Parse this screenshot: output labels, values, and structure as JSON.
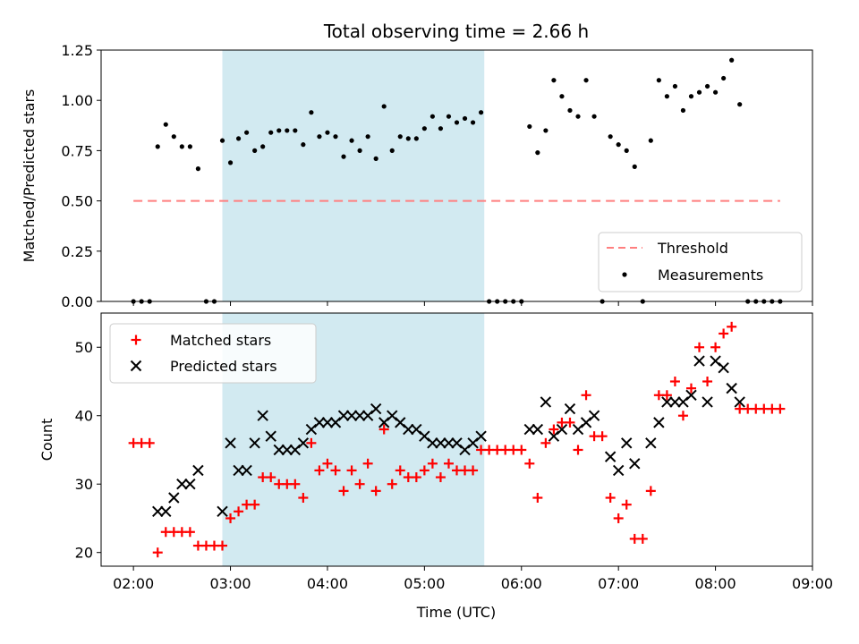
{
  "chart_data": [
    {
      "type": "scatter",
      "title": "Total observing time = 2.66 h",
      "xlabel": "",
      "ylabel": "Matched/Predicted stars",
      "xlim": [
        "01:40",
        "09:00"
      ],
      "ylim": [
        0,
        1.25
      ],
      "yticks": [
        "0.00",
        "0.25",
        "0.50",
        "0.75",
        "1.00",
        "1.25"
      ],
      "shaded_span": [
        "02:55",
        "05:37"
      ],
      "shade_color": "#add8e6",
      "threshold": {
        "name": "Threshold",
        "value": 0.5,
        "x_range": [
          "02:00",
          "08:40"
        ],
        "color": "#ff7f7f"
      },
      "legend": {
        "placement": "lower-right",
        "entries": [
          "Threshold",
          "Measurements"
        ]
      },
      "series": [
        {
          "name": "Measurements",
          "color": "#000000",
          "points": [
            [
              "02:00",
              0.0
            ],
            [
              "02:05",
              0.0
            ],
            [
              "02:10",
              0.0
            ],
            [
              "02:15",
              0.77
            ],
            [
              "02:20",
              0.88
            ],
            [
              "02:25",
              0.82
            ],
            [
              "02:30",
              0.77
            ],
            [
              "02:35",
              0.77
            ],
            [
              "02:40",
              0.66
            ],
            [
              "02:45",
              0.0
            ],
            [
              "02:50",
              0.0
            ],
            [
              "02:55",
              0.8
            ],
            [
              "03:00",
              0.69
            ],
            [
              "03:05",
              0.81
            ],
            [
              "03:10",
              0.84
            ],
            [
              "03:15",
              0.75
            ],
            [
              "03:20",
              0.77
            ],
            [
              "03:25",
              0.84
            ],
            [
              "03:30",
              0.85
            ],
            [
              "03:35",
              0.85
            ],
            [
              "03:40",
              0.85
            ],
            [
              "03:45",
              0.78
            ],
            [
              "03:50",
              0.94
            ],
            [
              "03:55",
              0.82
            ],
            [
              "04:00",
              0.84
            ],
            [
              "04:05",
              0.82
            ],
            [
              "04:10",
              0.72
            ],
            [
              "04:15",
              0.8
            ],
            [
              "04:20",
              0.75
            ],
            [
              "04:25",
              0.82
            ],
            [
              "04:30",
              0.71
            ],
            [
              "04:35",
              0.97
            ],
            [
              "04:40",
              0.75
            ],
            [
              "04:45",
              0.82
            ],
            [
              "04:50",
              0.81
            ],
            [
              "04:55",
              0.81
            ],
            [
              "05:00",
              0.86
            ],
            [
              "05:05",
              0.92
            ],
            [
              "05:10",
              0.86
            ],
            [
              "05:15",
              0.92
            ],
            [
              "05:20",
              0.89
            ],
            [
              "05:25",
              0.91
            ],
            [
              "05:30",
              0.89
            ],
            [
              "05:35",
              0.94
            ],
            [
              "05:40",
              0.0
            ],
            [
              "05:45",
              0.0
            ],
            [
              "05:50",
              0.0
            ],
            [
              "05:55",
              0.0
            ],
            [
              "06:00",
              0.0
            ],
            [
              "06:05",
              0.87
            ],
            [
              "06:10",
              0.74
            ],
            [
              "06:15",
              0.85
            ],
            [
              "06:20",
              1.1
            ],
            [
              "06:25",
              1.02
            ],
            [
              "06:30",
              0.95
            ],
            [
              "06:35",
              0.92
            ],
            [
              "06:40",
              1.1
            ],
            [
              "06:45",
              0.92
            ],
            [
              "06:50",
              0.0
            ],
            [
              "06:55",
              0.82
            ],
            [
              "07:00",
              0.78
            ],
            [
              "07:05",
              0.75
            ],
            [
              "07:10",
              0.67
            ],
            [
              "07:15",
              0.0
            ],
            [
              "07:20",
              0.8
            ],
            [
              "07:25",
              1.1
            ],
            [
              "07:30",
              1.02
            ],
            [
              "07:35",
              1.07
            ],
            [
              "07:40",
              0.95
            ],
            [
              "07:45",
              1.02
            ],
            [
              "07:50",
              1.04
            ],
            [
              "07:55",
              1.07
            ],
            [
              "08:00",
              1.04
            ],
            [
              "08:05",
              1.11
            ],
            [
              "08:10",
              1.2
            ],
            [
              "08:15",
              0.98
            ],
            [
              "08:20",
              0.0
            ],
            [
              "08:25",
              0.0
            ],
            [
              "08:30",
              0.0
            ],
            [
              "08:35",
              0.0
            ],
            [
              "08:40",
              0.0
            ]
          ]
        }
      ]
    },
    {
      "type": "scatter",
      "title": "",
      "xlabel": "Time (UTC)",
      "ylabel": "Count",
      "xlim": [
        "01:40",
        "09:00"
      ],
      "ylim": [
        18,
        55
      ],
      "xticks": [
        "02:00",
        "03:00",
        "04:00",
        "05:00",
        "06:00",
        "07:00",
        "08:00",
        "09:00"
      ],
      "yticks": [
        "20",
        "30",
        "40",
        "50"
      ],
      "shaded_span": [
        "02:55",
        "05:37"
      ],
      "shade_color": "#add8e6",
      "legend": {
        "placement": "upper-left",
        "entries": [
          "Matched stars",
          "Predicted stars"
        ]
      },
      "series": [
        {
          "name": "Matched stars",
          "marker": "plus",
          "color": "#ff0000",
          "points": [
            [
              "02:00",
              36
            ],
            [
              "02:05",
              36
            ],
            [
              "02:10",
              36
            ],
            [
              "02:15",
              20
            ],
            [
              "02:20",
              23
            ],
            [
              "02:25",
              23
            ],
            [
              "02:30",
              23
            ],
            [
              "02:35",
              23
            ],
            [
              "02:40",
              21
            ],
            [
              "02:45",
              21
            ],
            [
              "02:50",
              21
            ],
            [
              "02:55",
              21
            ],
            [
              "03:00",
              25
            ],
            [
              "03:05",
              26
            ],
            [
              "03:10",
              27
            ],
            [
              "03:15",
              27
            ],
            [
              "03:20",
              31
            ],
            [
              "03:25",
              31
            ],
            [
              "03:30",
              30
            ],
            [
              "03:35",
              30
            ],
            [
              "03:40",
              30
            ],
            [
              "03:45",
              28
            ],
            [
              "03:50",
              36
            ],
            [
              "03:55",
              32
            ],
            [
              "04:00",
              33
            ],
            [
              "04:05",
              32
            ],
            [
              "04:10",
              29
            ],
            [
              "04:15",
              32
            ],
            [
              "04:20",
              30
            ],
            [
              "04:25",
              33
            ],
            [
              "04:30",
              29
            ],
            [
              "04:35",
              38
            ],
            [
              "04:40",
              30
            ],
            [
              "04:45",
              32
            ],
            [
              "04:50",
              31
            ],
            [
              "04:55",
              31
            ],
            [
              "05:00",
              32
            ],
            [
              "05:05",
              33
            ],
            [
              "05:10",
              31
            ],
            [
              "05:15",
              33
            ],
            [
              "05:20",
              32
            ],
            [
              "05:25",
              32
            ],
            [
              "05:30",
              32
            ],
            [
              "05:35",
              35
            ],
            [
              "05:40",
              35
            ],
            [
              "05:45",
              35
            ],
            [
              "05:50",
              35
            ],
            [
              "05:55",
              35
            ],
            [
              "06:00",
              35
            ],
            [
              "06:05",
              33
            ],
            [
              "06:10",
              28
            ],
            [
              "06:15",
              36
            ],
            [
              "06:20",
              38
            ],
            [
              "06:25",
              39
            ],
            [
              "06:30",
              39
            ],
            [
              "06:35",
              35
            ],
            [
              "06:40",
              43
            ],
            [
              "06:45",
              37
            ],
            [
              "06:50",
              37
            ],
            [
              "06:55",
              28
            ],
            [
              "07:00",
              25
            ],
            [
              "07:05",
              27
            ],
            [
              "07:10",
              22
            ],
            [
              "07:15",
              22
            ],
            [
              "07:20",
              29
            ],
            [
              "07:25",
              43
            ],
            [
              "07:30",
              43
            ],
            [
              "07:35",
              45
            ],
            [
              "07:40",
              40
            ],
            [
              "07:45",
              44
            ],
            [
              "07:50",
              50
            ],
            [
              "07:55",
              45
            ],
            [
              "08:00",
              50
            ],
            [
              "08:05",
              52
            ],
            [
              "08:10",
              53
            ],
            [
              "08:15",
              41
            ],
            [
              "08:20",
              41
            ],
            [
              "08:25",
              41
            ],
            [
              "08:30",
              41
            ],
            [
              "08:35",
              41
            ],
            [
              "08:40",
              41
            ]
          ]
        },
        {
          "name": "Predicted stars",
          "marker": "x",
          "color": "#000000",
          "points": [
            [
              "02:15",
              26
            ],
            [
              "02:20",
              26
            ],
            [
              "02:25",
              28
            ],
            [
              "02:30",
              30
            ],
            [
              "02:35",
              30
            ],
            [
              "02:40",
              32
            ],
            [
              "02:55",
              26
            ],
            [
              "03:00",
              36
            ],
            [
              "03:05",
              32
            ],
            [
              "03:10",
              32
            ],
            [
              "03:15",
              36
            ],
            [
              "03:20",
              40
            ],
            [
              "03:25",
              37
            ],
            [
              "03:30",
              35
            ],
            [
              "03:35",
              35
            ],
            [
              "03:40",
              35
            ],
            [
              "03:45",
              36
            ],
            [
              "03:50",
              38
            ],
            [
              "03:55",
              39
            ],
            [
              "04:00",
              39
            ],
            [
              "04:05",
              39
            ],
            [
              "04:10",
              40
            ],
            [
              "04:15",
              40
            ],
            [
              "04:20",
              40
            ],
            [
              "04:25",
              40
            ],
            [
              "04:30",
              41
            ],
            [
              "04:35",
              39
            ],
            [
              "04:40",
              40
            ],
            [
              "04:45",
              39
            ],
            [
              "04:50",
              38
            ],
            [
              "04:55",
              38
            ],
            [
              "05:00",
              37
            ],
            [
              "05:05",
              36
            ],
            [
              "05:10",
              36
            ],
            [
              "05:15",
              36
            ],
            [
              "05:20",
              36
            ],
            [
              "05:25",
              35
            ],
            [
              "05:30",
              36
            ],
            [
              "05:35",
              37
            ],
            [
              "06:05",
              38
            ],
            [
              "06:10",
              38
            ],
            [
              "06:15",
              42
            ],
            [
              "06:20",
              37
            ],
            [
              "06:25",
              38
            ],
            [
              "06:30",
              41
            ],
            [
              "06:35",
              38
            ],
            [
              "06:40",
              39
            ],
            [
              "06:45",
              40
            ],
            [
              "06:55",
              34
            ],
            [
              "07:00",
              32
            ],
            [
              "07:05",
              36
            ],
            [
              "07:10",
              33
            ],
            [
              "07:20",
              36
            ],
            [
              "07:25",
              39
            ],
            [
              "07:30",
              42
            ],
            [
              "07:35",
              42
            ],
            [
              "07:40",
              42
            ],
            [
              "07:45",
              43
            ],
            [
              "07:50",
              48
            ],
            [
              "07:55",
              42
            ],
            [
              "08:00",
              48
            ],
            [
              "08:05",
              47
            ],
            [
              "08:10",
              44
            ],
            [
              "08:15",
              42
            ]
          ]
        }
      ]
    }
  ]
}
